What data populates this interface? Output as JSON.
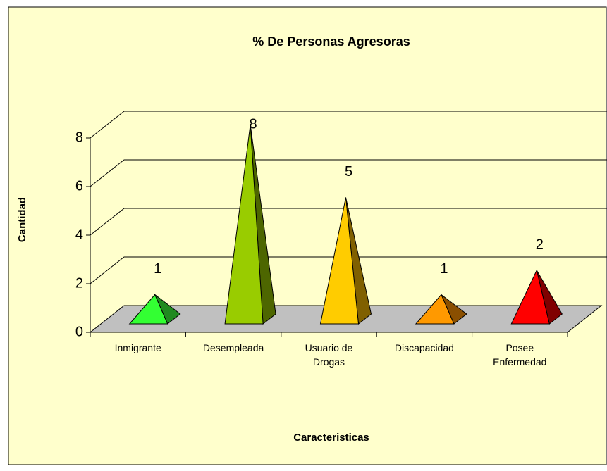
{
  "chart_data": {
    "type": "pyramid",
    "title": "% De Personas Agresoras",
    "x_label": "Caracteristicas",
    "y_label": "Cantidad",
    "categories": [
      "Inmigrante",
      "Desempleada",
      "Usuario de Drogas",
      "Discapacidad",
      "Posee Enfermedad"
    ],
    "values": [
      1,
      8,
      5,
      1,
      2
    ],
    "colors": [
      "#33ff33",
      "#99cc00",
      "#ffcc00",
      "#ff9900",
      "#ff0000"
    ],
    "side_colors": [
      "#1f8a1f",
      "#4d6600",
      "#806000",
      "#8a4f00",
      "#800000"
    ],
    "ylim": [
      0,
      8
    ],
    "yticks": [
      0,
      2,
      4,
      6,
      8
    ],
    "grid": true
  }
}
